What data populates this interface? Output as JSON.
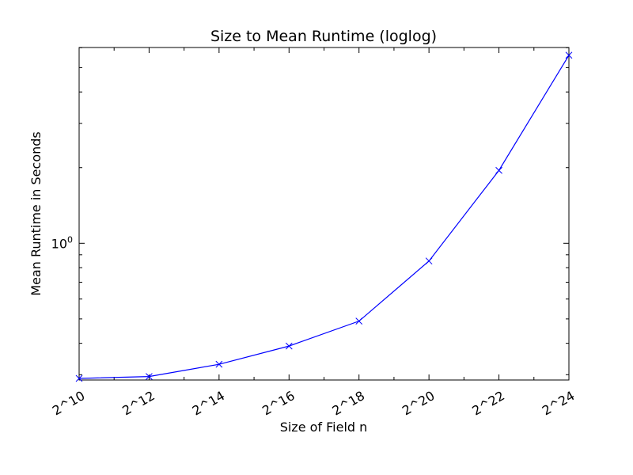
{
  "chart_data": {
    "type": "line",
    "title": "Size to Mean Runtime (loglog)",
    "xlabel": "Size of Field n",
    "ylabel": "Mean Runtime in Seconds",
    "x_scale": "log2",
    "y_scale": "log10",
    "xlim": [
      "2^10",
      "2^24"
    ],
    "x_ticks": [
      "2^10",
      "2^12",
      "2^14",
      "2^16",
      "2^18",
      "2^20",
      "2^22",
      "2^24"
    ],
    "y_ticks": [
      {
        "base": "10",
        "exp": "0"
      }
    ],
    "grid": false,
    "legend": "none",
    "series": [
      {
        "marker": "x",
        "color": "#0000ff",
        "x": [
          "2^10",
          "2^12",
          "2^14",
          "2^16",
          "2^18",
          "2^20",
          "2^22",
          "2^24"
        ],
        "y": [
          0.29,
          0.295,
          0.33,
          0.39,
          0.49,
          0.85,
          1.95,
          5.6
        ]
      }
    ]
  }
}
